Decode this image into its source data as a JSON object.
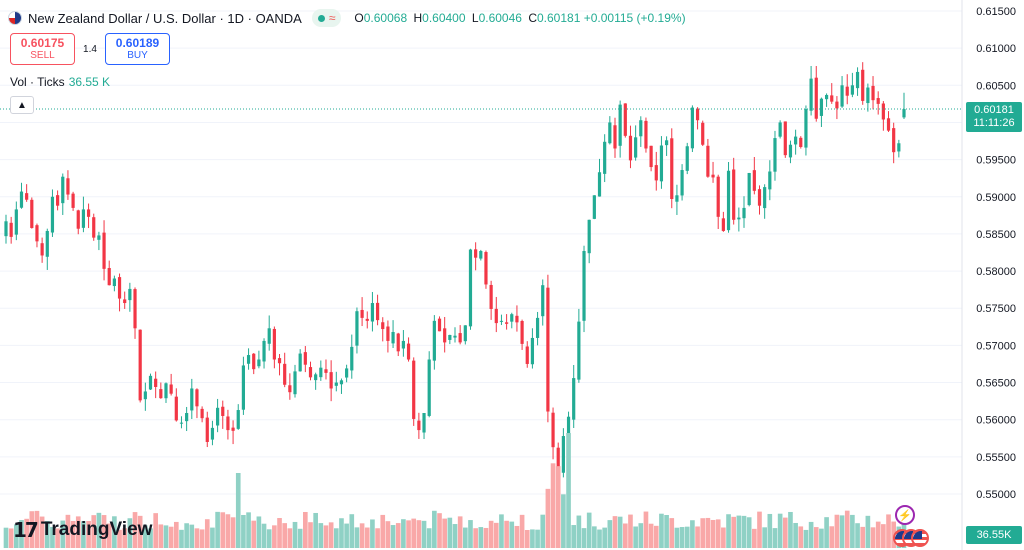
{
  "header": {
    "title": "New Zealand Dollar / U.S. Dollar · 1D · OANDA",
    "status_icon": "market-open-dot",
    "ohlc": {
      "o_label": "O",
      "o": "0.60068",
      "h_label": "H",
      "h": "0.60400",
      "l_label": "L",
      "l": "0.60046",
      "c_label": "C",
      "c": "0.60181",
      "change": "+0.00115 (+0.19%)"
    }
  },
  "trade": {
    "sell_price": "0.60175",
    "sell_label": "SELL",
    "spread": "1.4",
    "buy_price": "0.60189",
    "buy_label": "BUY"
  },
  "volume_indicator": {
    "label": "Vol · Ticks",
    "value": "36.55 K"
  },
  "collapse_icon": "chevron-up-icon",
  "price_scale": {
    "current_price": "0.60181",
    "countdown": "11:11:26",
    "volume_label": "36.55K"
  },
  "branding": {
    "name": "TradingView"
  },
  "colors": {
    "up": "#22ab94",
    "down": "#f23645",
    "vol_up": "#8fd1c5",
    "vol_down": "#f9a8a8",
    "grid": "#f0f3fa"
  },
  "chart_data": {
    "type": "candlestick",
    "symbol": "NZDUSD",
    "interval": "1D",
    "ylim": [
      0.5445,
      0.6165
    ],
    "y_ticks": [
      "0.61500",
      "0.61000",
      "0.60500",
      "0.60000",
      "0.59500",
      "0.59000",
      "0.58500",
      "0.58000",
      "0.57500",
      "0.57000",
      "0.56500",
      "0.56000",
      "0.55500",
      "0.55000"
    ],
    "closes": [
      0.5867,
      0.5846,
      0.5883,
      0.5907,
      0.5896,
      0.5858,
      0.584,
      0.5821,
      0.5854,
      0.59,
      0.5888,
      0.5927,
      0.5903,
      0.5885,
      0.5857,
      0.5883,
      0.5873,
      0.5845,
      0.5848,
      0.5803,
      0.5781,
      0.579,
      0.5763,
      0.5757,
      0.5776,
      0.5723,
      0.5626,
      0.5638,
      0.5659,
      0.5644,
      0.5629,
      0.5649,
      0.5635,
      0.5599,
      0.5596,
      0.5609,
      0.5642,
      0.5618,
      0.5602,
      0.557,
      0.5589,
      0.5616,
      0.5605,
      0.5586,
      0.5585,
      0.5613,
      0.5673,
      0.5687,
      0.5668,
      0.5681,
      0.5706,
      0.5723,
      0.5681,
      0.5676,
      0.5647,
      0.5637,
      0.5665,
      0.5689,
      0.5674,
      0.5657,
      0.5661,
      0.567,
      0.5663,
      0.5642,
      0.565,
      0.5653,
      0.5669,
      0.5698,
      0.5746,
      0.5737,
      0.5733,
      0.5757,
      0.5734,
      0.5722,
      0.5706,
      0.5718,
      0.5692,
      0.5706,
      0.5681,
      0.5601,
      0.5586,
      0.5609,
      0.5681,
      0.5733,
      0.5719,
      0.5704,
      0.5714,
      0.5713,
      0.5704,
      0.5727,
      0.5829,
      0.5818,
      0.5827,
      0.5782,
      0.5749,
      0.573,
      0.5733,
      0.5729,
      0.5742,
      0.5731,
      0.5702,
      0.5675,
      0.571,
      0.5737,
      0.5781,
      0.5611,
      0.5563,
      0.5528,
      0.5578,
      0.5604,
      0.5656,
      0.5732,
      0.5827,
      0.5869,
      0.5902,
      0.5933,
      0.5974,
      0.6,
      0.5965,
      0.6024,
      0.5982,
      0.5949,
      0.598,
      0.6003,
      0.5965,
      0.594,
      0.5922,
      0.5969,
      0.5976,
      0.5897,
      0.5902,
      0.5936,
      0.5968,
      0.602,
      0.6003,
      0.597,
      0.5927,
      0.5926,
      0.5873,
      0.5854,
      0.5935,
      0.5869,
      0.5872,
      0.5885,
      0.5932,
      0.5908,
      0.5888,
      0.5913,
      0.5934,
      0.5979,
      0.6,
      0.5956,
      0.597,
      0.5981,
      0.5967,
      0.6018,
      0.6059,
      0.6005,
      0.6032,
      0.6037,
      0.6028,
      0.6019,
      0.605,
      0.6036,
      0.605,
      0.6068,
      0.6029,
      0.6047,
      0.603,
      0.6025,
      0.6004,
      0.5989,
      0.596,
      0.5972,
      0.6018
    ],
    "last_candle": {
      "open": 0.60068,
      "high": 0.604,
      "low": 0.60046,
      "close": 0.60181
    },
    "volume_unit": "K ticks",
    "last_volume": 36.55
  }
}
